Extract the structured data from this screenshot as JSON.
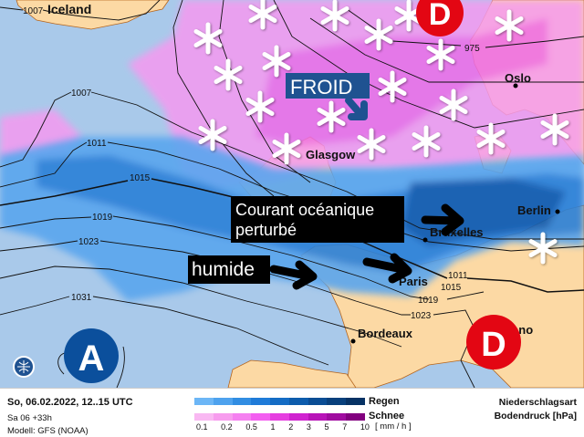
{
  "map": {
    "labels": {
      "iceland": "Iceland",
      "oslo": "Oslo",
      "glasgow": "Glasgow",
      "berlin": "Berlin",
      "bruxelles": "Bruxelles",
      "paris": "Paris",
      "bordeaux": "Bordeaux",
      "milano": "Milano"
    },
    "isobars": [
      "1007",
      "1007",
      "1011",
      "1015",
      "1019",
      "1023",
      "1031",
      "975",
      "1011",
      "1015",
      "1019",
      "1023"
    ],
    "pressure_centers": [
      {
        "type": "low",
        "label": "D",
        "color": "#e30613"
      },
      {
        "type": "low",
        "label": "D",
        "color": "#e30613"
      },
      {
        "type": "high",
        "label": "A",
        "color": "#0b4f9c"
      }
    ],
    "annotations": {
      "froid": "FROID",
      "courant_line1": "Courant océanique",
      "courant_line2": "perturbé",
      "humide": "humide"
    },
    "colors": {
      "ocean": "#a9c9ea",
      "land": "#fcd9a4",
      "froid_box": "#1f5291"
    }
  },
  "legend": {
    "date": "So, 06.02.2022, 12..15 UTC",
    "run": "Sa 06 +33h",
    "model": "Modell: GFS (NOAA)",
    "rain_label": "Regen",
    "snow_label": "Schnee",
    "ticks": [
      "0.1",
      "0.2",
      "0.5",
      "1",
      "2",
      "3",
      "5",
      "7",
      "10"
    ],
    "unit": "[ mm / h ]",
    "title1": "Niederschlagsart",
    "title2": "Bodendruck [hPa]",
    "rain_colors": [
      "#6cb6f6",
      "#4ea2ee",
      "#318de2",
      "#1f7bd8",
      "#146cc4",
      "#0d5cac",
      "#0a4d94",
      "#08407c",
      "#063264"
    ],
    "snow_colors": [
      "#f9b8f2",
      "#f79cee",
      "#f580f0",
      "#f35ef0",
      "#e63ee0",
      "#d023d0",
      "#b814b8",
      "#a00ca0",
      "#82007f"
    ]
  }
}
